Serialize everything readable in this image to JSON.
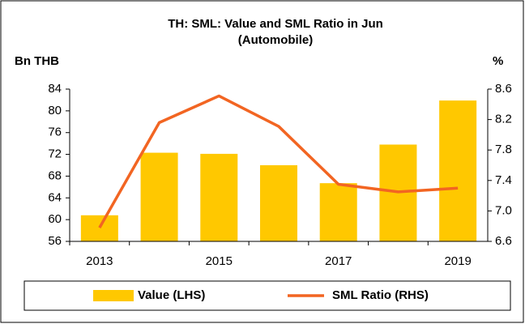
{
  "chart_data": {
    "type": "bar_line",
    "title": "TH: SML: Value and SML Ratio in Jun",
    "subtitle": "(Automobile)",
    "y_label": "Bn THB",
    "y2_label": "%",
    "categories": [
      "2013",
      null,
      "2015",
      null,
      "2017",
      null,
      "2019"
    ],
    "series": [
      {
        "name": "Value (LHS)",
        "type": "bar",
        "color": "#FFC800",
        "values": [
          60.8,
          72.3,
          72.1,
          70.0,
          66.7,
          73.8,
          81.9
        ]
      },
      {
        "name": "SML Ratio (RHS)",
        "type": "line",
        "axis": "y2",
        "color": "#F26522",
        "values": [
          6.78,
          8.16,
          8.51,
          8.11,
          7.35,
          7.25,
          7.3
        ]
      }
    ],
    "ylim": [
      56,
      84
    ],
    "yticks": [
      56,
      60,
      64,
      68,
      72,
      76,
      80,
      84
    ],
    "y2lim": [
      6.6,
      8.6
    ],
    "y2ticks": [
      6.6,
      {
        "value": 7,
        "label": "7.0"
      },
      7.4,
      7.8,
      8.2,
      8.6
    ],
    "legend": "bottom"
  }
}
